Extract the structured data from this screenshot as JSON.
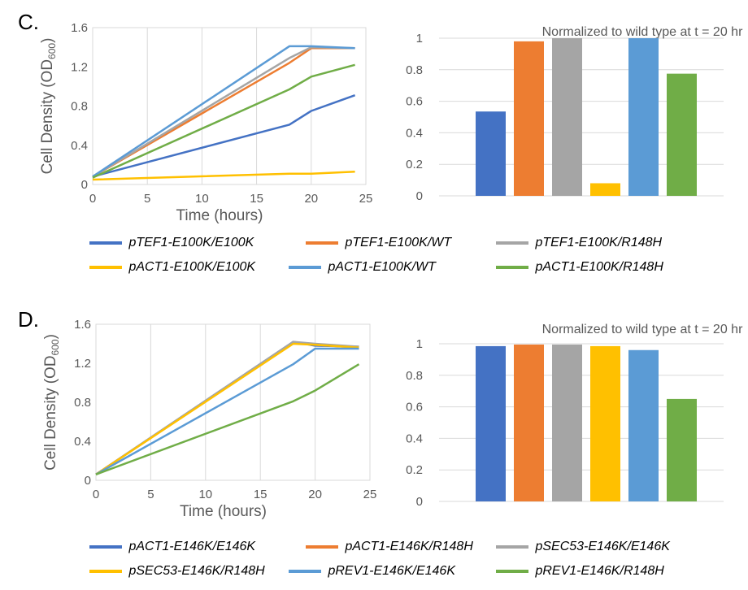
{
  "panels": [
    {
      "letter": "C.",
      "chart_data": [
        {
          "type": "line",
          "title": "",
          "xlabel": "Time (hours)",
          "ylabel": "Cell Density (OD",
          "ylabel_sub": "600",
          "ylabel_close": ")",
          "xlim": [
            0,
            25
          ],
          "ylim": [
            0,
            1.6
          ],
          "xticks": [
            "0",
            "5",
            "10",
            "15",
            "20",
            "25"
          ],
          "yticks": [
            "0",
            "0.4",
            "0.8",
            "1.2",
            "1.6"
          ],
          "grid": "vertical",
          "series": [
            {
              "name": "pTEF1-E100K/E100K",
              "color": "#4472C4",
              "x": [
                0,
                18,
                20,
                24
              ],
              "y": [
                0.08,
                0.61,
                0.75,
                0.91
              ]
            },
            {
              "name": "pTEF1-E100K/WT",
              "color": "#ED7D31",
              "x": [
                0,
                18,
                20,
                24
              ],
              "y": [
                0.08,
                1.24,
                1.39,
                1.39
              ]
            },
            {
              "name": "pTEF1-E100K/R148H",
              "color": "#A5A5A5",
              "x": [
                0,
                18,
                20,
                24
              ],
              "y": [
                0.08,
                1.29,
                1.4,
                1.39
              ]
            },
            {
              "name": "pACT1-E100K/E100K",
              "color": "#FFC000",
              "x": [
                0,
                18,
                20,
                24
              ],
              "y": [
                0.05,
                0.11,
                0.11,
                0.13
              ]
            },
            {
              "name": "pACT1-E100K/WT",
              "color": "#5B9BD5",
              "x": [
                0,
                18,
                20,
                24
              ],
              "y": [
                0.08,
                1.41,
                1.41,
                1.39
              ]
            },
            {
              "name": "pACT1-E100K/R148H",
              "color": "#70AD47",
              "x": [
                0,
                18,
                20,
                24
              ],
              "y": [
                0.07,
                0.97,
                1.1,
                1.22
              ]
            }
          ]
        },
        {
          "type": "bar",
          "title": "Normalized to wild type at t = 20 hr",
          "ylim": [
            0,
            1
          ],
          "yticks": [
            "0",
            "0.2",
            "0.4",
            "0.6",
            "0.8",
            "1"
          ],
          "categories": [
            "pTEF1-E100K/E100K",
            "pTEF1-E100K/WT",
            "pTEF1-E100K/R148H",
            "pACT1-E100K/E100K",
            "pACT1-E100K/WT",
            "pACT1-E100K/R148H"
          ],
          "values": [
            0.535,
            0.98,
            1.0,
            0.08,
            1.0,
            0.775
          ],
          "colors": [
            "#4472C4",
            "#ED7D31",
            "#A5A5A5",
            "#FFC000",
            "#5B9BD5",
            "#70AD47"
          ]
        }
      ],
      "legend": [
        "pTEF1-E100K/E100K",
        "pTEF1-E100K/WT",
        "pTEF1-E100K/R148H",
        "pACT1-E100K/E100K",
        "pACT1-E100K/WT",
        "pACT1-E100K/R148H"
      ]
    },
    {
      "letter": "D.",
      "chart_data": [
        {
          "type": "line",
          "title": "",
          "xlabel": "Time (hours)",
          "ylabel": "Cell Density (OD",
          "ylabel_sub": "600",
          "ylabel_close": ")",
          "xlim": [
            0,
            25
          ],
          "ylim": [
            0,
            1.6
          ],
          "xticks": [
            "0",
            "5",
            "10",
            "15",
            "20",
            "25"
          ],
          "yticks": [
            "0",
            "0.4",
            "0.8",
            "1.2",
            "1.6"
          ],
          "grid": "vertical",
          "series": [
            {
              "name": "pACT1-E146K/E146K",
              "color": "#4472C4",
              "x": [
                0,
                18,
                20,
                24
              ],
              "y": [
                0.06,
                1.42,
                1.38,
                1.37
              ]
            },
            {
              "name": "pACT1-E146K/R148H",
              "color": "#ED7D31",
              "x": [
                0,
                18,
                20,
                24
              ],
              "y": [
                0.06,
                1.41,
                1.39,
                1.36
              ]
            },
            {
              "name": "pSEC53-E146K/E146K",
              "color": "#A5A5A5",
              "x": [
                0,
                18,
                20,
                24
              ],
              "y": [
                0.06,
                1.42,
                1.4,
                1.37
              ]
            },
            {
              "name": "pSEC53-E146K/R148H",
              "color": "#FFC000",
              "x": [
                0,
                18,
                20,
                24
              ],
              "y": [
                0.06,
                1.4,
                1.39,
                1.36
              ]
            },
            {
              "name": "pREV1-E146K/E146K",
              "color": "#5B9BD5",
              "x": [
                0,
                18,
                20,
                24
              ],
              "y": [
                0.06,
                1.19,
                1.35,
                1.35
              ]
            },
            {
              "name": "pREV1-E146K/R148H",
              "color": "#70AD47",
              "x": [
                0,
                18,
                20,
                24
              ],
              "y": [
                0.06,
                0.81,
                0.92,
                1.19
              ]
            }
          ]
        },
        {
          "type": "bar",
          "title": "Normalized to wild type at t = 20 hr",
          "ylim": [
            0,
            1
          ],
          "yticks": [
            "0",
            "0.2",
            "0.4",
            "0.6",
            "0.8",
            "1"
          ],
          "categories": [
            "pACT1-E146K/E146K",
            "pACT1-E146K/R148H",
            "pSEC53-E146K/E146K",
            "pSEC53-E146K/R148H",
            "pREV1-E146K/E146K",
            "pREV1-E146K/R148H"
          ],
          "values": [
            0.985,
            0.995,
            0.995,
            0.985,
            0.96,
            0.65
          ],
          "colors": [
            "#4472C4",
            "#ED7D31",
            "#A5A5A5",
            "#FFC000",
            "#5B9BD5",
            "#70AD47"
          ]
        }
      ],
      "legend": [
        "pACT1-E146K/E146K",
        "pACT1-E146K/R148H",
        "pSEC53-E146K/E146K",
        "pSEC53-E146K/R148H",
        "pREV1-E146K/E146K",
        "pREV1-E146K/R148H"
      ]
    }
  ]
}
